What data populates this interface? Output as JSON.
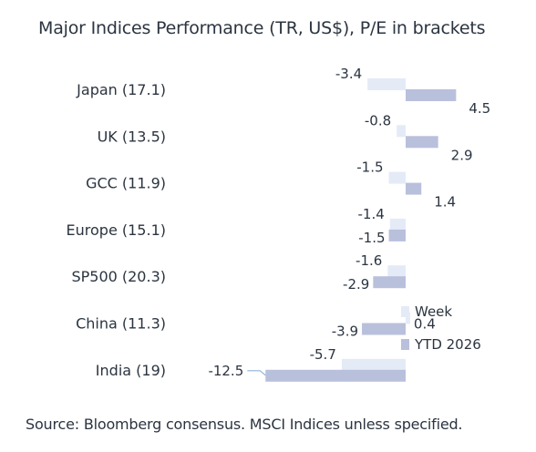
{
  "chart_data": {
    "type": "bar",
    "orientation": "horizontal",
    "title": "Major Indices Performance (TR, US$), P/E in brackets",
    "categories": [
      "Japan (17.1)",
      "UK (13.5)",
      "GCC (11.9)",
      "Europe (15.1)",
      "SP500 (20.3)",
      "China (11.3)",
      "India (19)"
    ],
    "series": [
      {
        "name": "Week",
        "values": [
          -3.4,
          -0.8,
          -1.5,
          -1.4,
          -1.6,
          0.4,
          -5.7
        ],
        "color": "#e4ebf7"
      },
      {
        "name": "YTD 2026",
        "values": [
          4.5,
          2.9,
          1.4,
          -1.5,
          -2.9,
          -3.9,
          -12.5
        ],
        "color": "#b9c0dc"
      }
    ],
    "legend": "bottom-right",
    "grid": false,
    "xlim": [
      -13.5,
      5.5
    ],
    "source": "Source: Bloomberg consensus. MSCI Indices unless specified."
  }
}
